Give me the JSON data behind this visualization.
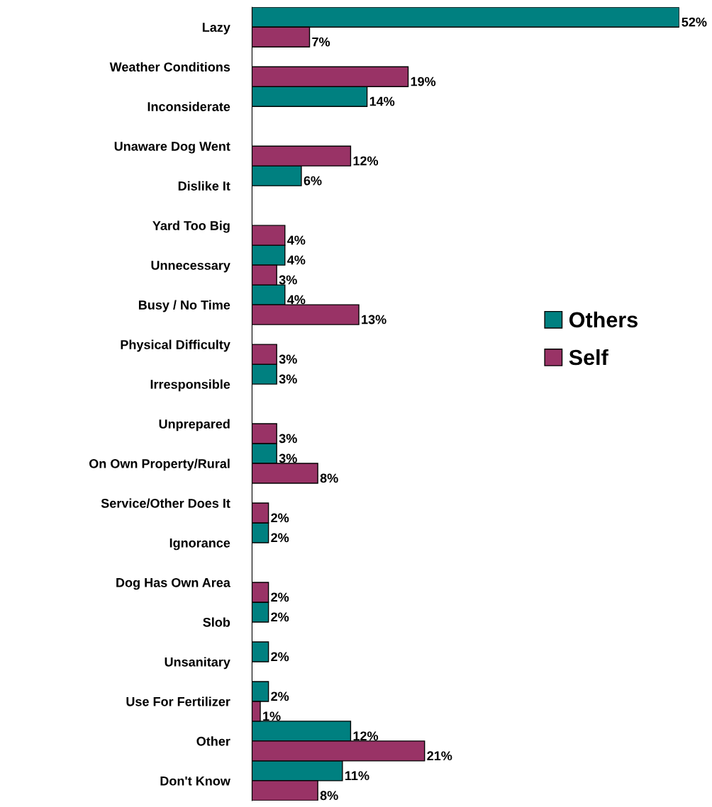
{
  "chart_data": {
    "type": "bar",
    "orientation": "horizontal",
    "categories": [
      "Lazy",
      "Weather Conditions",
      "Inconsiderate",
      "Unaware Dog Went",
      "Dislike It",
      "Yard Too Big",
      "Unnecessary",
      "Busy / No Time",
      "Physical Difficulty",
      "Irresponsible",
      "Unprepared",
      "On Own Property/Rural",
      "Service/Other Does It",
      "Ignorance",
      "Dog Has Own Area",
      "Slob",
      "Unsanitary",
      "Use For Fertilizer",
      "Other",
      "Don't Know"
    ],
    "series": [
      {
        "name": "Others",
        "color": "#008080",
        "values": [
          52,
          null,
          14,
          null,
          6,
          null,
          4,
          4,
          null,
          3,
          null,
          3,
          null,
          2,
          null,
          2,
          2,
          2,
          12,
          11
        ],
        "value_labels": [
          "52%",
          null,
          "14%",
          null,
          "6%",
          null,
          "4%",
          "4%",
          null,
          "3%",
          null,
          "3%",
          null,
          "2%",
          null,
          "2%",
          "2%",
          "2%",
          "12%",
          "11%"
        ]
      },
      {
        "name": "Self",
        "color": "#993366",
        "values": [
          7,
          19,
          null,
          12,
          null,
          4,
          3,
          13,
          3,
          null,
          3,
          8,
          2,
          null,
          2,
          null,
          null,
          1,
          21,
          8
        ],
        "value_labels": [
          "7%",
          "19%",
          null,
          "12%",
          null,
          "4%",
          "3%",
          "13%",
          "3%",
          null,
          "3%",
          "8%",
          "2%",
          null,
          "2%",
          null,
          null,
          "1%",
          "21%",
          "8%"
        ]
      }
    ],
    "legend": "right"
  }
}
